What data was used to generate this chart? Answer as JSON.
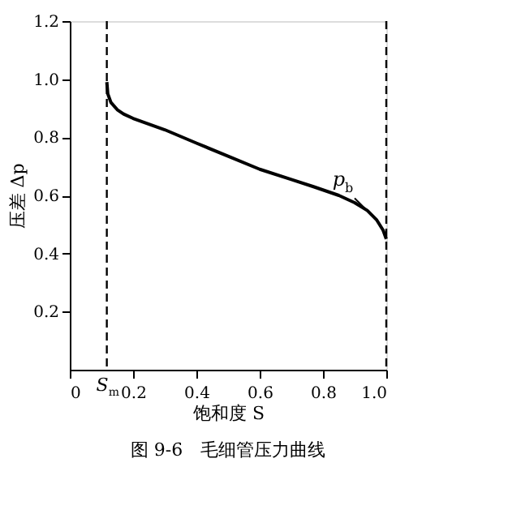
{
  "chart_data": {
    "type": "line",
    "xlabel": "饱和度 S",
    "ylabel": "压差 Δp",
    "x": [
      0.117,
      0.12,
      0.13,
      0.15,
      0.17,
      0.2,
      0.25,
      0.3,
      0.4,
      0.5,
      0.6,
      0.7,
      0.77,
      0.85,
      0.9,
      0.94,
      0.97,
      0.99,
      1.0
    ],
    "series": [
      {
        "color": "#000000",
        "values": [
          0.99,
          0.95,
          0.92,
          0.895,
          0.88,
          0.865,
          0.845,
          0.826,
          0.78,
          0.735,
          0.69,
          0.655,
          0.63,
          0.6,
          0.575,
          0.548,
          0.515,
          0.48,
          0.45
        ]
      }
    ],
    "xlim": [
      0,
      1.0
    ],
    "ylim": [
      0,
      1.2
    ],
    "xticks": [
      0,
      0.2,
      0.4,
      0.6,
      0.8,
      {
        "value": 1.0,
        "label": "1.0"
      }
    ],
    "yticks": [
      0.2,
      0.4,
      0.6,
      0.8,
      {
        "value": 1.0,
        "label": "1.0"
      },
      {
        "value": 1.2,
        "label": "1.2"
      }
    ],
    "ref_lines": [
      {
        "axis": "x",
        "value": 0.117,
        "label": "S$_{m}$",
        "line_style": "dashed",
        "color": "#000000"
      },
      {
        "axis": "x",
        "value": 1.0,
        "line_style": "dashed",
        "color": "#000000"
      }
    ],
    "annotations": [
      {
        "text": "p$_{b}$",
        "x": 0.97,
        "y": 0.515
      },
      "图 9-6　毛细管压力曲线"
    ],
    "grid": false,
    "marker": "none",
    "line_style": "solid"
  }
}
